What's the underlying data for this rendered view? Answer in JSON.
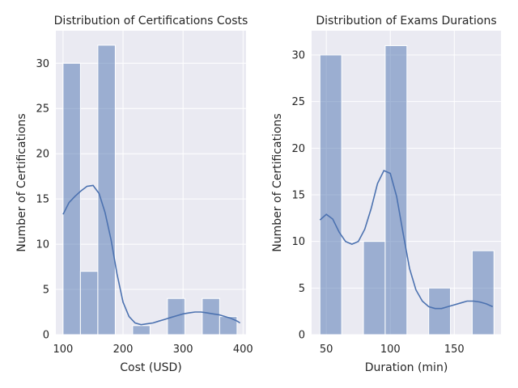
{
  "chart_data": [
    {
      "type": "bar",
      "subtype": "histogram-with-kde",
      "title": "Distribution of Certifications Costs",
      "xlabel": "Cost (USD)",
      "ylabel": "Number of Certifications",
      "xlim": [
        88,
        405
      ],
      "ylim": [
        0,
        33.6
      ],
      "xticks": [
        100,
        200,
        300,
        400
      ],
      "yticks": [
        0,
        5,
        10,
        15,
        20,
        25,
        30
      ],
      "grid": true,
      "bins": [
        {
          "x0": 100,
          "x1": 129,
          "count": 30
        },
        {
          "x0": 129,
          "x1": 158,
          "count": 7
        },
        {
          "x0": 158,
          "x1": 187,
          "count": 32
        },
        {
          "x0": 187,
          "x1": 216,
          "count": 0
        },
        {
          "x0": 216,
          "x1": 245,
          "count": 1
        },
        {
          "x0": 245,
          "x1": 274,
          "count": 0
        },
        {
          "x0": 274,
          "x1": 303,
          "count": 4
        },
        {
          "x0": 303,
          "x1": 332,
          "count": 0
        },
        {
          "x0": 332,
          "x1": 361,
          "count": 4
        },
        {
          "x0": 361,
          "x1": 390,
          "count": 2
        }
      ],
      "kde": {
        "x": [
          100,
          110,
          120,
          130,
          140,
          150,
          160,
          170,
          180,
          190,
          200,
          210,
          220,
          230,
          240,
          250,
          260,
          270,
          280,
          290,
          300,
          310,
          320,
          330,
          340,
          350,
          360,
          370,
          380,
          390,
          395
        ],
        "y": [
          13.3,
          14.6,
          15.3,
          15.9,
          16.4,
          16.5,
          15.6,
          13.5,
          10.5,
          6.7,
          3.6,
          2.0,
          1.3,
          1.1,
          1.2,
          1.3,
          1.5,
          1.7,
          1.9,
          2.1,
          2.3,
          2.4,
          2.5,
          2.5,
          2.4,
          2.3,
          2.2,
          2.0,
          1.8,
          1.5,
          1.3
        ]
      }
    },
    {
      "type": "bar",
      "subtype": "histogram-with-kde",
      "title": "Distribution of Exams Durations",
      "xlabel": "Duration (min)",
      "ylabel": "Number of Certifications",
      "xlim": [
        38.5,
        186.5
      ],
      "ylim": [
        0,
        32.6
      ],
      "xticks": [
        50,
        100,
        150
      ],
      "yticks": [
        0,
        5,
        10,
        15,
        20,
        25,
        30
      ],
      "grid": true,
      "bins": [
        {
          "x0": 45,
          "x1": 62,
          "count": 30
        },
        {
          "x0": 62,
          "x1": 79,
          "count": 0
        },
        {
          "x0": 79,
          "x1": 96,
          "count": 10
        },
        {
          "x0": 96,
          "x1": 113,
          "count": 31
        },
        {
          "x0": 113,
          "x1": 130,
          "count": 0
        },
        {
          "x0": 130,
          "x1": 147,
          "count": 5
        },
        {
          "x0": 147,
          "x1": 164,
          "count": 0
        },
        {
          "x0": 164,
          "x1": 181,
          "count": 9
        }
      ],
      "kde": {
        "x": [
          45,
          50,
          55,
          60,
          65,
          70,
          75,
          80,
          85,
          90,
          95,
          100,
          105,
          110,
          115,
          120,
          125,
          130,
          135,
          140,
          145,
          150,
          155,
          160,
          165,
          170,
          175,
          180
        ],
        "y": [
          12.3,
          12.9,
          12.4,
          11.0,
          10.0,
          9.7,
          10.0,
          11.3,
          13.5,
          16.2,
          17.6,
          17.3,
          14.8,
          10.9,
          7.1,
          4.8,
          3.6,
          3.0,
          2.8,
          2.8,
          3.0,
          3.2,
          3.4,
          3.6,
          3.6,
          3.5,
          3.3,
          3.0
        ]
      }
    }
  ]
}
